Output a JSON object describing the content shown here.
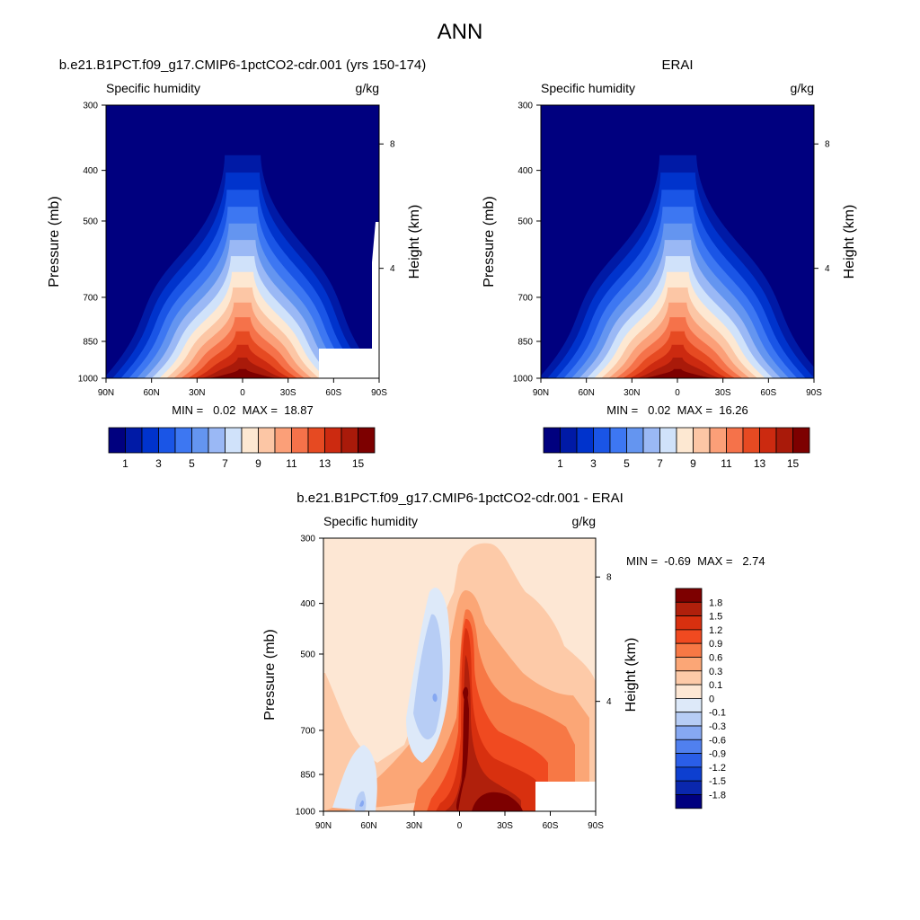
{
  "figure": {
    "title": "ANN",
    "panels": [
      {
        "title": "b.e21.B1PCT.f09_g17.CMIP6-1pctCO2-cdr.001 (yrs 150-174)",
        "left_label": "Specific humidity",
        "right_label": "g/kg",
        "ylabel": "Pressure (mb)",
        "ylabel_right": "Height (km)",
        "stats": "MIN =   0.02  MAX =  18.87"
      },
      {
        "title": "ERAI",
        "left_label": "Specific humidity",
        "right_label": "g/kg",
        "ylabel": "Pressure (mb)",
        "ylabel_right": "Height (km)",
        "stats": "MIN =   0.02  MAX =  16.26"
      },
      {
        "title": "b.e21.B1PCT.f09_g17.CMIP6-1pctCO2-cdr.001 - ERAI",
        "left_label": "Specific humidity",
        "right_label": "g/kg",
        "ylabel": "Pressure (mb)",
        "ylabel_right": "Height (km)",
        "stats": "MIN =  -0.69  MAX =   2.74"
      }
    ]
  },
  "chart_data": [
    {
      "type": "heatmap",
      "title": "b.e21.B1PCT.f09_g17.CMIP6-1pctCO2-cdr.001 (yrs 150-174)",
      "variable": "Specific humidity",
      "units": "g/kg",
      "xlabel": "",
      "ylabel": "Pressure (mb)",
      "ylabel_right": "Height (km)",
      "x_ticks": [
        "90N",
        "60N",
        "30N",
        "0",
        "30S",
        "60S",
        "90S"
      ],
      "y_ticks": [
        300,
        400,
        500,
        700,
        850,
        1000
      ],
      "y_right_ticks": [
        4,
        8
      ],
      "xlim": [
        90,
        -90
      ],
      "ylim": [
        1000,
        300
      ],
      "y_scale": "log",
      "min": 0.02,
      "max": 18.87,
      "peak_lat": 0,
      "peak_value": 18.87,
      "colorbar_labels": [
        "1",
        "3",
        "5",
        "7",
        "9",
        "11",
        "13",
        "15"
      ],
      "colors": [
        "#00007f",
        "#001aa6",
        "#0033cc",
        "#1a55e6",
        "#3d77f2",
        "#6495f0",
        "#9ab8f5",
        "#d0e2fa",
        "#fde8d2",
        "#fcc6a5",
        "#fb9f78",
        "#f5724a",
        "#e64a22",
        "#cc2a10",
        "#a91a0a",
        "#7d0000"
      ]
    },
    {
      "type": "heatmap",
      "title": "ERAI",
      "variable": "Specific humidity",
      "units": "g/kg",
      "xlabel": "",
      "ylabel": "Pressure (mb)",
      "ylabel_right": "Height (km)",
      "x_ticks": [
        "90N",
        "60N",
        "30N",
        "0",
        "30S",
        "60S",
        "90S"
      ],
      "y_ticks": [
        300,
        400,
        500,
        700,
        850,
        1000
      ],
      "y_right_ticks": [
        4,
        8
      ],
      "xlim": [
        90,
        -90
      ],
      "ylim": [
        1000,
        300
      ],
      "y_scale": "log",
      "min": 0.02,
      "max": 16.26,
      "peak_lat": 5,
      "peak_value": 16.26,
      "colorbar_labels": [
        "1",
        "3",
        "5",
        "7",
        "9",
        "11",
        "13",
        "15"
      ],
      "colors": [
        "#00007f",
        "#001aa6",
        "#0033cc",
        "#1a55e6",
        "#3d77f2",
        "#6495f0",
        "#9ab8f5",
        "#d0e2fa",
        "#fde8d2",
        "#fcc6a5",
        "#fb9f78",
        "#f5724a",
        "#e64a22",
        "#cc2a10",
        "#a91a0a",
        "#7d0000"
      ]
    },
    {
      "type": "heatmap",
      "title": "b.e21.B1PCT.f09_g17.CMIP6-1pctCO2-cdr.001 - ERAI",
      "variable": "Specific humidity",
      "units": "g/kg",
      "xlabel": "",
      "ylabel": "Pressure (mb)",
      "ylabel_right": "Height (km)",
      "x_ticks": [
        "90N",
        "60N",
        "30N",
        "0",
        "30S",
        "60S",
        "90S"
      ],
      "y_ticks": [
        300,
        400,
        500,
        700,
        850,
        1000
      ],
      "y_right_ticks": [
        4,
        8
      ],
      "xlim": [
        90,
        -90
      ],
      "ylim": [
        1000,
        300
      ],
      "y_scale": "log",
      "min": -0.69,
      "max": 2.74,
      "colorbar_labels": [
        "1.8",
        "1.5",
        "1.2",
        "0.9",
        "0.6",
        "0.3",
        "0.1",
        "0",
        "-0.1",
        "-0.3",
        "-0.6",
        "-0.9",
        "-1.2",
        "-1.5",
        "-1.8"
      ],
      "colors": [
        "#7d0000",
        "#b0200c",
        "#d8300f",
        "#f04a20",
        "#f77845",
        "#fba676",
        "#fdcaa8",
        "#fde7d4",
        "#dde9f9",
        "#b7cdf5",
        "#86a8f2",
        "#5080ef",
        "#2a5ee8",
        "#0d3fd0",
        "#0a27ad",
        "#00007f"
      ]
    }
  ]
}
